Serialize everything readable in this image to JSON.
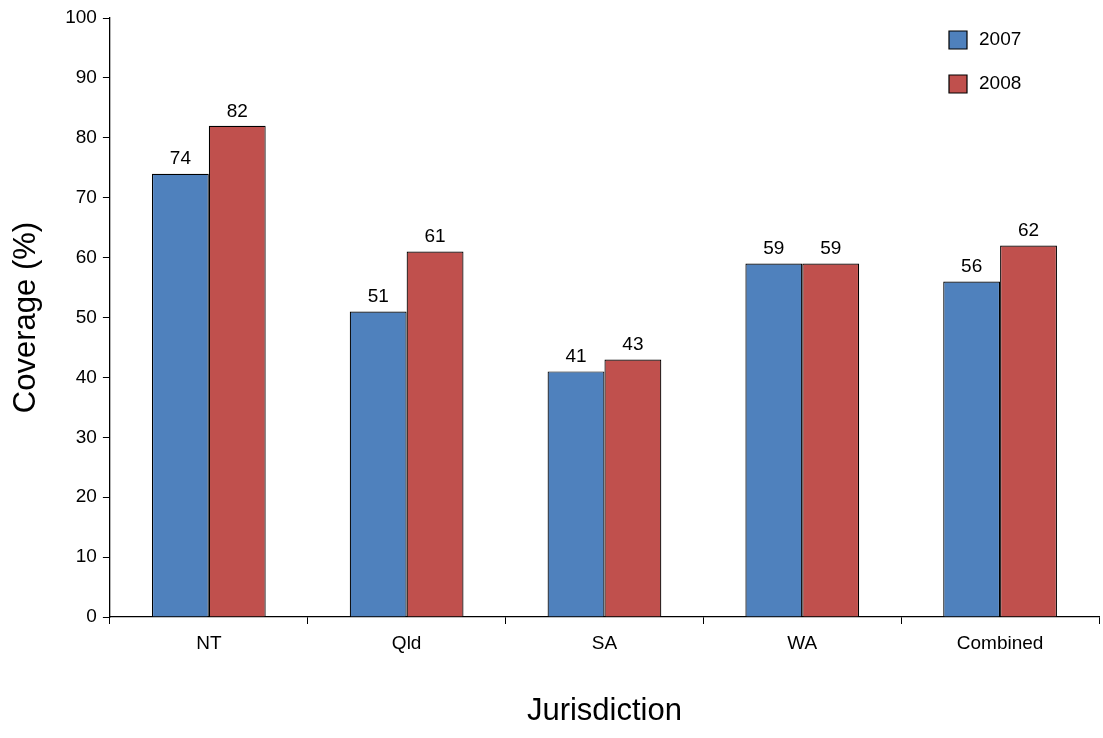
{
  "chart_data": {
    "type": "bar",
    "xlabel": "Jurisdiction",
    "ylabel": "Coverage (%)",
    "categories": [
      "NT",
      "Qld",
      "SA",
      "WA",
      "Combined"
    ],
    "series": [
      {
        "name": "2007",
        "color": "#4f81bd",
        "values": [
          74,
          51,
          41,
          59,
          56
        ]
      },
      {
        "name": "2008",
        "color": "#c0504d",
        "values": [
          82,
          61,
          43,
          59,
          62
        ]
      }
    ],
    "ylim": [
      0,
      100
    ],
    "yticks": [
      0,
      10,
      20,
      30,
      40,
      50,
      60,
      70,
      80,
      90,
      100
    ],
    "data_labels": true,
    "legend": "top right"
  }
}
